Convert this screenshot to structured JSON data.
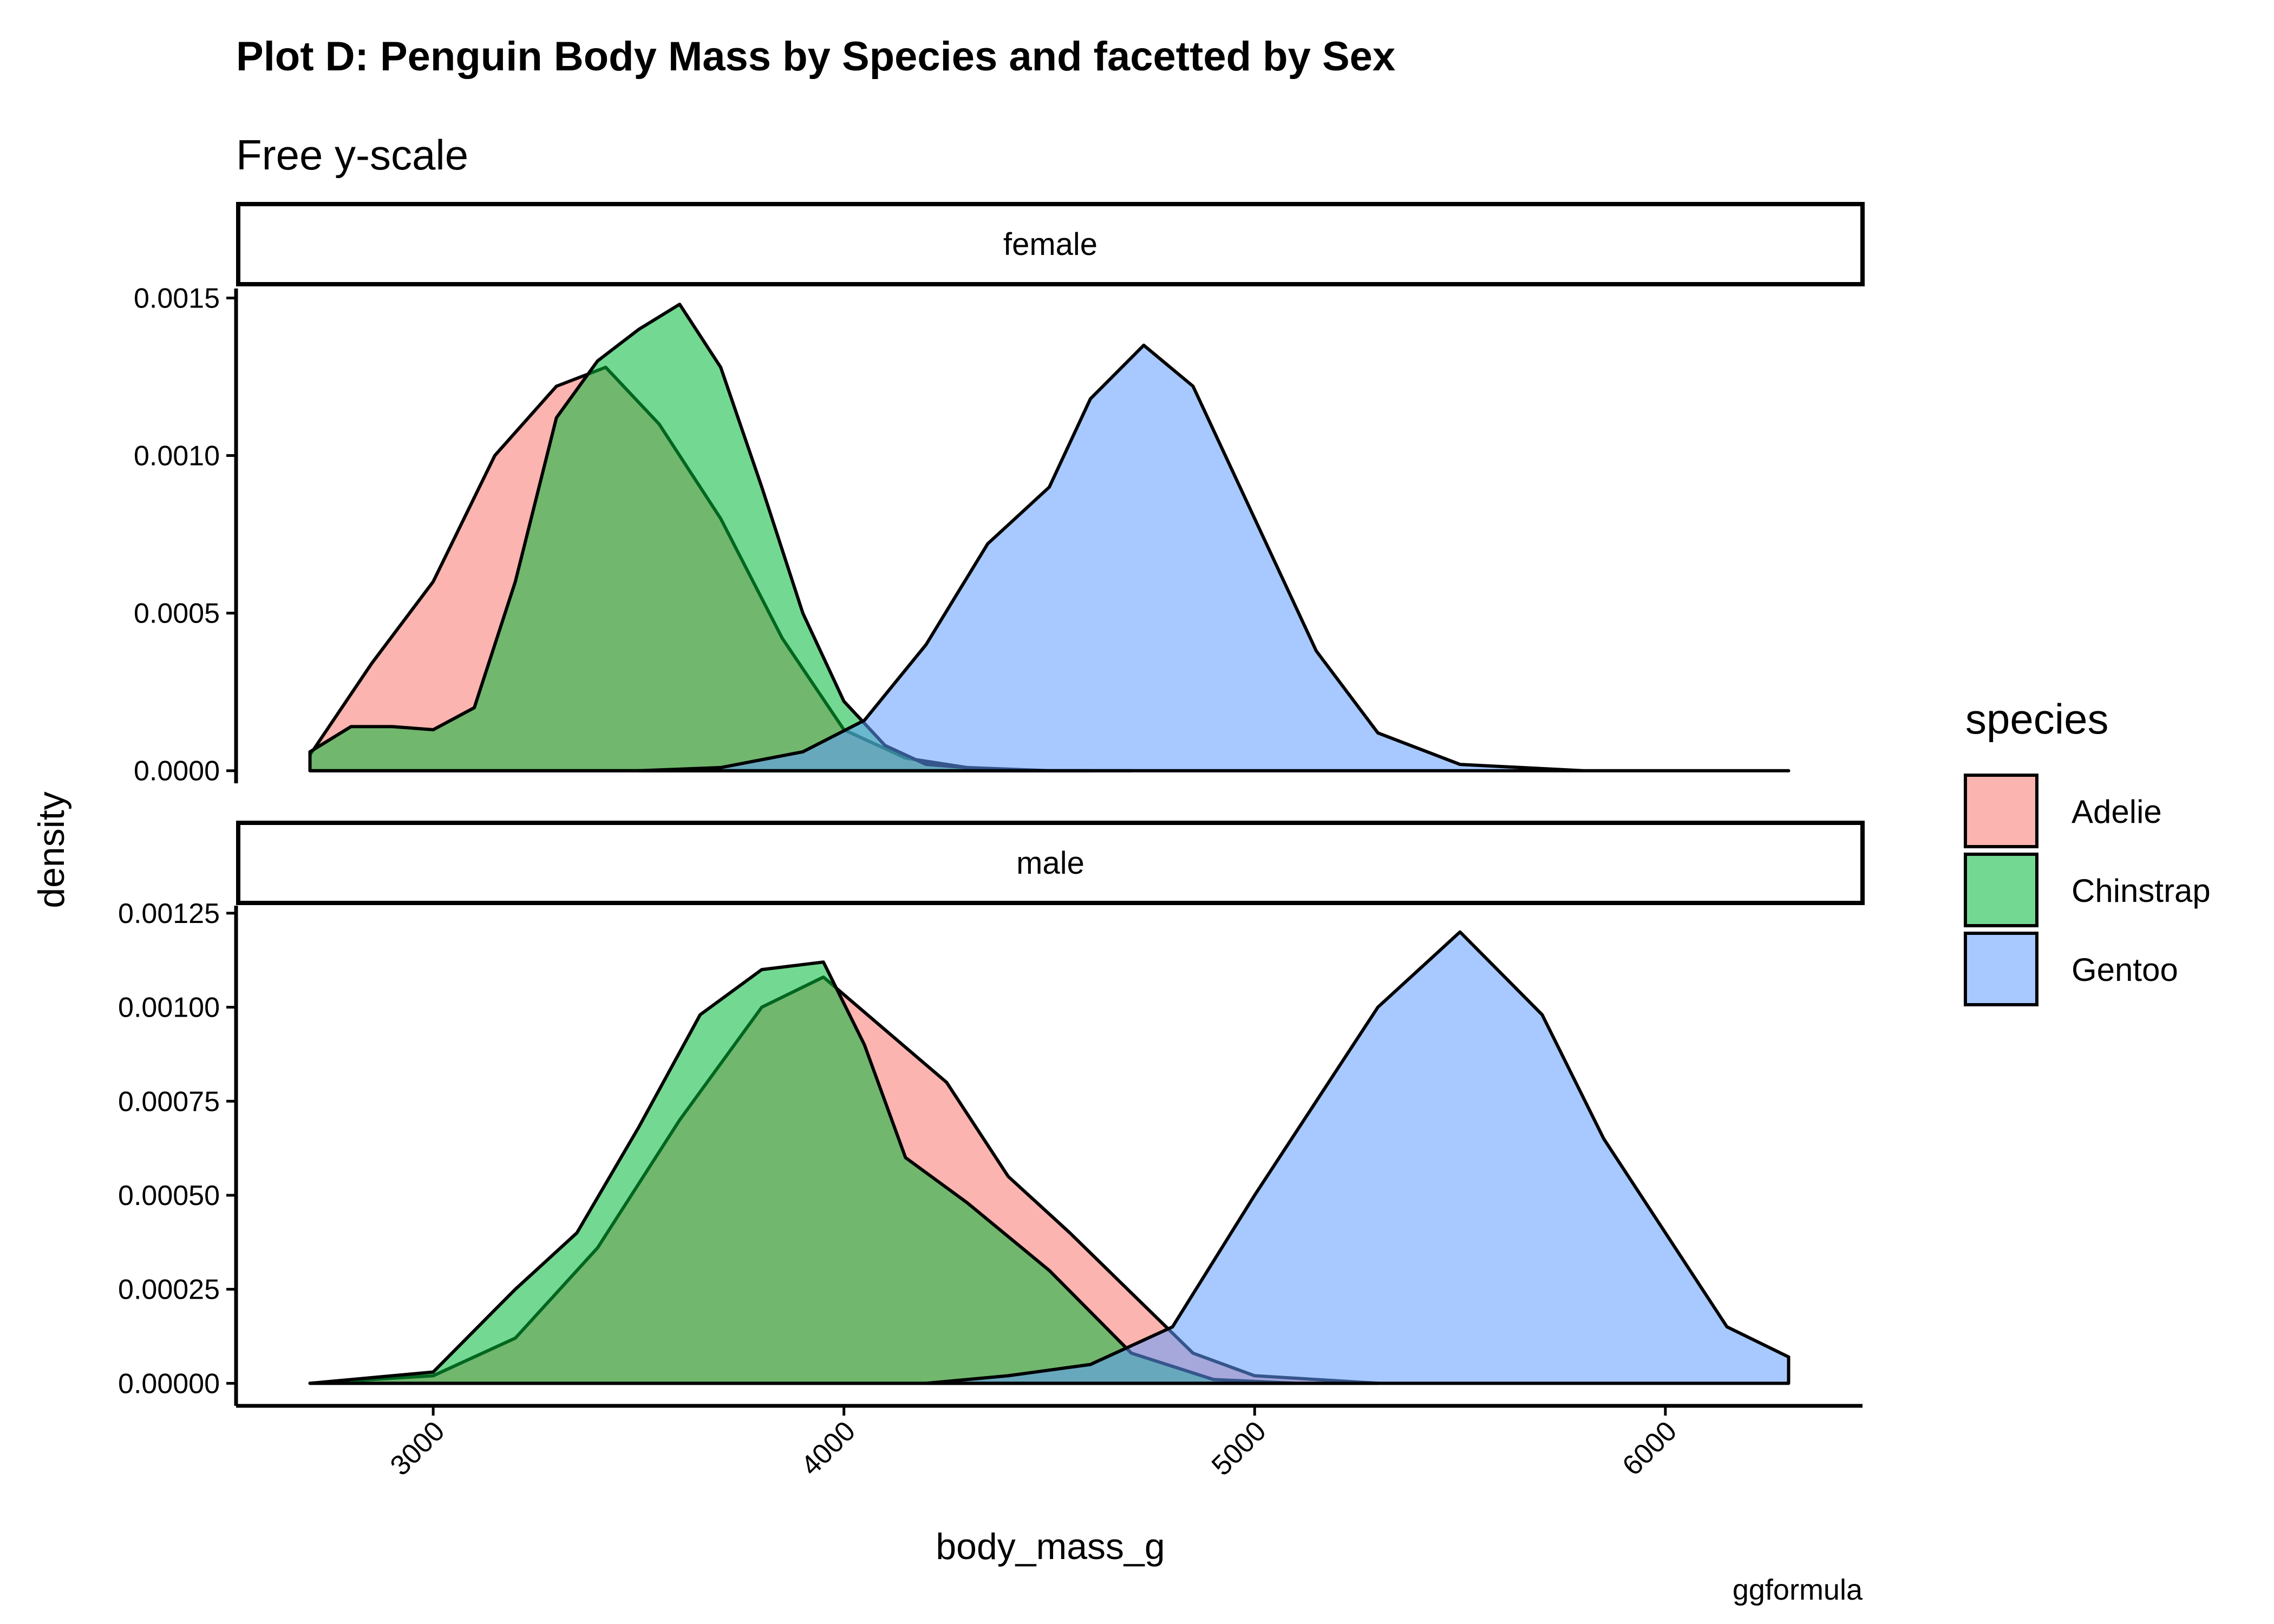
{
  "chart_data": {
    "type": "area",
    "title": "Plot D: Penguin Body Mass by Species and facetted by Sex",
    "subtitle": "Free y-scale",
    "xlabel": "body_mass_g",
    "ylabel": "density",
    "caption": "ggformula",
    "x_ticks": [
      3000,
      4000,
      5000,
      6000
    ],
    "xlim": [
      2520,
      6480
    ],
    "legend": {
      "title": "species",
      "placement": "right",
      "entries": [
        {
          "label": "Adelie",
          "color": "#F8766D"
        },
        {
          "label": "Chinstrap",
          "color": "#00BA38"
        },
        {
          "label": "Gentoo",
          "color": "#619CFF"
        }
      ]
    },
    "fill_alpha": 0.55,
    "panels": [
      {
        "strip": "female",
        "ylim": [
          -4e-05,
          0.00153
        ],
        "y_ticks": [
          "0.0000",
          "0.0005",
          "0.0010",
          "0.0015"
        ],
        "y_tick_values": [
          0,
          0.0005,
          0.001,
          0.0015
        ],
        "series": [
          {
            "name": "Adelie",
            "color": "#F8766D",
            "x": [
              2700,
              2850,
              3000,
              3150,
              3300,
              3420,
              3550,
              3700,
              3850,
              4000,
              4150,
              4300,
              4500,
              4700
            ],
            "y": [
              5e-05,
              0.00034,
              0.0006,
              0.001,
              0.00122,
              0.00128,
              0.0011,
              0.0008,
              0.00042,
              0.00013,
              4e-05,
              1e-05,
              0.0,
              0.0
            ]
          },
          {
            "name": "Chinstrap",
            "color": "#00BA38",
            "x": [
              2700,
              2800,
              2900,
              3000,
              3100,
              3200,
              3300,
              3400,
              3500,
              3600,
              3700,
              3800,
              3900,
              4000,
              4100,
              4200,
              4400,
              4600
            ],
            "y": [
              6e-05,
              0.00014,
              0.00014,
              0.00013,
              0.0002,
              0.0006,
              0.00112,
              0.0013,
              0.0014,
              0.00148,
              0.00128,
              0.0009,
              0.0005,
              0.00022,
              8e-05,
              2e-05,
              0.0,
              0.0
            ]
          },
          {
            "name": "Gentoo",
            "color": "#619CFF",
            "x": [
              3500,
              3700,
              3900,
              4050,
              4200,
              4350,
              4500,
              4600,
              4730,
              4850,
              5000,
              5150,
              5300,
              5500,
              5800,
              6300
            ],
            "y": [
              0.0,
              1e-05,
              6e-05,
              0.00016,
              0.0004,
              0.00072,
              0.0009,
              0.00118,
              0.00135,
              0.00122,
              0.0008,
              0.00038,
              0.00012,
              2e-05,
              0.0,
              0.0
            ]
          }
        ]
      },
      {
        "strip": "male",
        "ylim": [
          -6e-05,
          0.00127
        ],
        "y_ticks": [
          "0.00000",
          "0.00025",
          "0.00050",
          "0.00075",
          "0.00100",
          "0.00125"
        ],
        "y_tick_values": [
          0,
          0.00025,
          0.0005,
          0.00075,
          0.001,
          0.00125
        ],
        "series": [
          {
            "name": "Adelie",
            "color": "#F8766D",
            "x": [
              2700,
              3000,
              3200,
              3400,
              3600,
              3800,
              3950,
              4100,
              4250,
              4400,
              4550,
              4700,
              4850,
              5000,
              5300
            ],
            "y": [
              0.0,
              2e-05,
              0.00012,
              0.00036,
              0.0007,
              0.001,
              0.00108,
              0.00094,
              0.0008,
              0.00055,
              0.0004,
              0.00024,
              8e-05,
              2e-05,
              0.0
            ]
          },
          {
            "name": "Chinstrap",
            "color": "#00BA38",
            "x": [
              2700,
              3000,
              3200,
              3350,
              3500,
              3650,
              3800,
              3950,
              4050,
              4150,
              4300,
              4500,
              4700,
              4900,
              5100
            ],
            "y": [
              0.0,
              3e-05,
              0.00025,
              0.0004,
              0.00068,
              0.00098,
              0.0011,
              0.00112,
              0.0009,
              0.0006,
              0.00048,
              0.0003,
              8e-05,
              1e-05,
              0.0
            ]
          },
          {
            "name": "Gentoo",
            "color": "#619CFF",
            "x": [
              4200,
              4400,
              4600,
              4800,
              5000,
              5150,
              5300,
              5500,
              5700,
              5850,
              6000,
              6150,
              6300
            ],
            "y": [
              0.0,
              2e-05,
              5e-05,
              0.00015,
              0.0005,
              0.00075,
              0.001,
              0.0012,
              0.00098,
              0.00065,
              0.0004,
              0.00015,
              7e-05
            ]
          }
        ]
      }
    ]
  }
}
